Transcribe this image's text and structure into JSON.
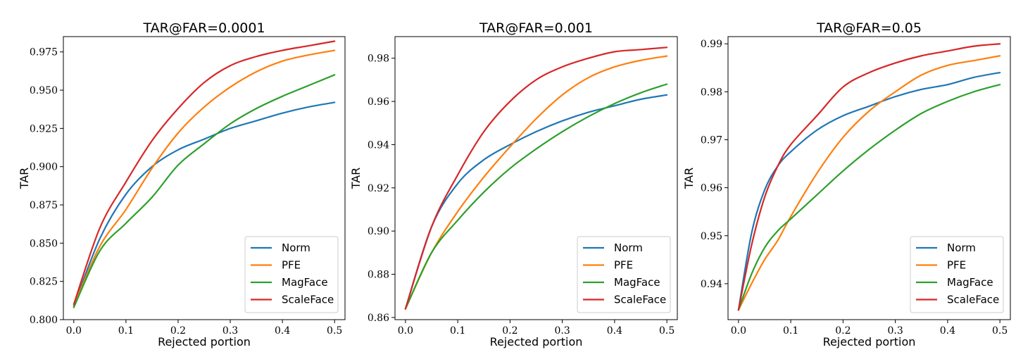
{
  "chart_data": [
    {
      "type": "line",
      "title": "TAR@FAR=0.0001",
      "xlabel": "Rejected portion",
      "ylabel": "TAR",
      "xlim": [
        -0.02,
        0.52
      ],
      "ylim": [
        0.8,
        0.985
      ],
      "xticks": [
        "0.0",
        "0.1",
        "0.2",
        "0.3",
        "0.4",
        "0.5"
      ],
      "xtick_values": [
        0.0,
        0.1,
        0.2,
        0.3,
        0.4,
        0.5
      ],
      "yticks": [
        "0.800",
        "0.825",
        "0.850",
        "0.875",
        "0.900",
        "0.925",
        "0.950",
        "0.975"
      ],
      "ytick_values": [
        0.8,
        0.825,
        0.85,
        0.875,
        0.9,
        0.925,
        0.95,
        0.975
      ],
      "legend_position": "lower-right",
      "x": [
        0.0,
        0.05,
        0.1,
        0.15,
        0.2,
        0.25,
        0.3,
        0.35,
        0.4,
        0.45,
        0.5
      ],
      "series": [
        {
          "name": "Norm",
          "color": "#1f77b4",
          "values": [
            0.809,
            0.853,
            0.882,
            0.9,
            0.911,
            0.918,
            0.925,
            0.93,
            0.935,
            0.939,
            0.942
          ]
        },
        {
          "name": "PFE",
          "color": "#ff7f0e",
          "values": [
            0.809,
            0.848,
            0.872,
            0.899,
            0.922,
            0.939,
            0.952,
            0.962,
            0.969,
            0.973,
            0.976
          ]
        },
        {
          "name": "MagFace",
          "color": "#2ca02c",
          "values": [
            0.808,
            0.845,
            0.863,
            0.88,
            0.901,
            0.915,
            0.928,
            0.938,
            0.946,
            0.953,
            0.96
          ]
        },
        {
          "name": "ScaleFace",
          "color": "#d62728",
          "values": [
            0.81,
            0.86,
            0.89,
            0.917,
            0.938,
            0.955,
            0.966,
            0.972,
            0.976,
            0.979,
            0.982
          ]
        }
      ]
    },
    {
      "type": "line",
      "title": "TAR@FAR=0.001",
      "xlabel": "Rejected portion",
      "ylabel": "TAR",
      "xlim": [
        -0.02,
        0.52
      ],
      "ylim": [
        0.859,
        0.99
      ],
      "xticks": [
        "0.0",
        "0.1",
        "0.2",
        "0.3",
        "0.4",
        "0.5"
      ],
      "xtick_values": [
        0.0,
        0.1,
        0.2,
        0.3,
        0.4,
        0.5
      ],
      "yticks": [
        "0.86",
        "0.88",
        "0.90",
        "0.92",
        "0.94",
        "0.96",
        "0.98"
      ],
      "ytick_values": [
        0.86,
        0.88,
        0.9,
        0.92,
        0.94,
        0.96,
        0.98
      ],
      "legend_position": "lower-right",
      "x": [
        0.0,
        0.05,
        0.1,
        0.15,
        0.2,
        0.25,
        0.3,
        0.35,
        0.4,
        0.45,
        0.5
      ],
      "series": [
        {
          "name": "Norm",
          "color": "#1f77b4",
          "values": [
            0.864,
            0.902,
            0.922,
            0.933,
            0.94,
            0.946,
            0.951,
            0.955,
            0.958,
            0.961,
            0.963
          ]
        },
        {
          "name": "PFE",
          "color": "#ff7f0e",
          "values": [
            0.864,
            0.89,
            0.909,
            0.925,
            0.939,
            0.952,
            0.963,
            0.971,
            0.976,
            0.979,
            0.981
          ]
        },
        {
          "name": "MagFace",
          "color": "#2ca02c",
          "values": [
            0.864,
            0.89,
            0.905,
            0.918,
            0.929,
            0.938,
            0.946,
            0.953,
            0.959,
            0.964,
            0.968
          ]
        },
        {
          "name": "ScaleFace",
          "color": "#d62728",
          "values": [
            0.864,
            0.902,
            0.926,
            0.946,
            0.96,
            0.97,
            0.976,
            0.98,
            0.983,
            0.984,
            0.985
          ]
        }
      ]
    },
    {
      "type": "line",
      "title": "TAR@FAR=0.05",
      "xlabel": "Rejected portion",
      "ylabel": "TAR",
      "xlim": [
        -0.02,
        0.52
      ],
      "ylim": [
        0.9325,
        0.9915
      ],
      "xticks": [
        "0.0",
        "0.1",
        "0.2",
        "0.3",
        "0.4",
        "0.5"
      ],
      "xtick_values": [
        0.0,
        0.1,
        0.2,
        0.3,
        0.4,
        0.5
      ],
      "yticks": [
        "0.94",
        "0.95",
        "0.96",
        "0.97",
        "0.98",
        "0.99"
      ],
      "ytick_values": [
        0.94,
        0.95,
        0.96,
        0.97,
        0.98,
        0.99
      ],
      "legend_position": "lower-right",
      "x": [
        0.0,
        0.025,
        0.05,
        0.075,
        0.1,
        0.15,
        0.2,
        0.25,
        0.3,
        0.35,
        0.4,
        0.45,
        0.5
      ],
      "series": [
        {
          "name": "Norm",
          "color": "#1f77b4",
          "values": [
            0.9345,
            0.9505,
            0.9595,
            0.9645,
            0.9675,
            0.972,
            0.975,
            0.977,
            0.979,
            0.9805,
            0.9815,
            0.983,
            0.984
          ]
        },
        {
          "name": "PFE",
          "color": "#ff7f0e",
          "values": [
            0.9345,
            0.94,
            0.945,
            0.949,
            0.954,
            0.963,
            0.9705,
            0.976,
            0.98,
            0.9835,
            0.9855,
            0.9865,
            0.9875
          ]
        },
        {
          "name": "MagFace",
          "color": "#2ca02c",
          "values": [
            0.9345,
            0.942,
            0.9475,
            0.951,
            0.9535,
            0.9585,
            0.9635,
            0.968,
            0.972,
            0.9755,
            0.978,
            0.98,
            0.9815
          ]
        },
        {
          "name": "ScaleFace",
          "color": "#d62728",
          "values": [
            0.9345,
            0.948,
            0.958,
            0.9645,
            0.969,
            0.975,
            0.981,
            0.984,
            0.986,
            0.9875,
            0.9885,
            0.9895,
            0.99
          ]
        }
      ]
    }
  ]
}
